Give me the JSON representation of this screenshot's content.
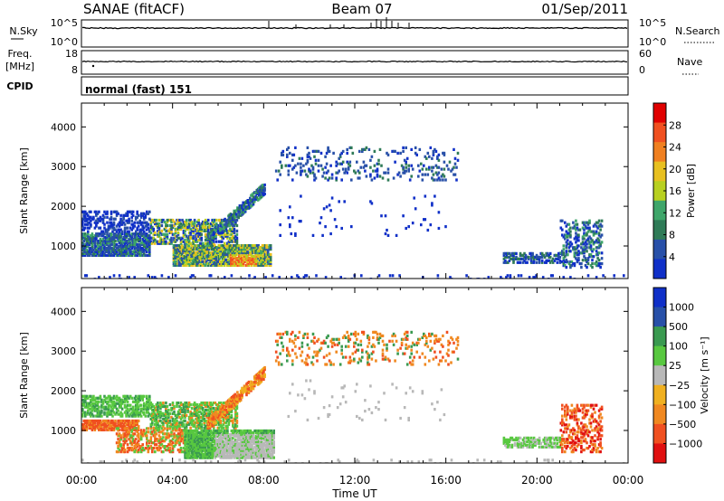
{
  "header": {
    "radar": "SANAE (fitACF)",
    "beam": "Beam 07",
    "date": "01/Sep/2011"
  },
  "nsky": {
    "left_label": "N.Sky",
    "right_label": "N.Search",
    "left_ticks": [
      "10^5",
      "10^0"
    ],
    "right_ticks": [
      "10^5",
      "10^0"
    ]
  },
  "freq": {
    "left_label_line1": "Freq.",
    "left_label_line2": "[MHz]",
    "right_label": "Nave",
    "left_ticks": [
      "18",
      "8"
    ],
    "right_ticks": [
      "60",
      "0"
    ]
  },
  "cpid": {
    "label": "CPID",
    "value": "normal (fast) 151"
  },
  "colors": {
    "power": [
      "#1030c8",
      "#2850a8",
      "#2f7b57",
      "#3fa66a",
      "#b8d020",
      "#e8c020",
      "#f08020",
      "#f05020",
      "#e00000"
    ],
    "velocity": [
      "#e01010",
      "#f05020",
      "#f08820",
      "#f0b020",
      "#b8b8b8",
      "#58c840",
      "#3a9a50",
      "#2850a8",
      "#1030c8"
    ]
  },
  "chart_data": [
    {
      "type": "heatmap",
      "title": "Power",
      "ylabel": "Slant Range [km]",
      "xlabel": "",
      "x_ticks": [
        "00:00",
        "04:00",
        "08:00",
        "12:00",
        "16:00",
        "20:00",
        "00:00"
      ],
      "xlim_hours": [
        0,
        24
      ],
      "ylim_km": [
        180,
        4600
      ],
      "y_ticks": [
        1000,
        2000,
        3000,
        4000
      ],
      "colorbar": {
        "label": "Power [dB]",
        "ticks": [
          "4",
          "8",
          "12",
          "16",
          "20",
          "24",
          "28"
        ],
        "range": [
          0,
          30
        ]
      },
      "regions": [
        {
          "t": [
            0.0,
            8.5
          ],
          "r": [
            250,
            1300
          ],
          "level": "mixed_high"
        },
        {
          "t": [
            0.0,
            3.0
          ],
          "r": [
            1300,
            1900
          ],
          "level": "low"
        },
        {
          "t": [
            3.0,
            6.5
          ],
          "r": [
            1300,
            2200
          ],
          "level": "mixed"
        },
        {
          "t": [
            6.5,
            8.0
          ],
          "r": [
            1800,
            2600
          ],
          "level": "low_mid"
        },
        {
          "t": [
            8.5,
            16.5
          ],
          "r": [
            2700,
            3600
          ],
          "level": "low_mid"
        },
        {
          "t": [
            18.5,
            21.0
          ],
          "r": [
            600,
            900
          ],
          "level": "low_mid"
        },
        {
          "t": [
            21.0,
            22.8
          ],
          "r": [
            500,
            1700
          ],
          "level": "low_mid"
        }
      ]
    },
    {
      "type": "heatmap",
      "title": "Velocity",
      "ylabel": "Slant Range [km]",
      "xlabel": "Time UT",
      "x_ticks": [
        "00:00",
        "04:00",
        "08:00",
        "12:00",
        "16:00",
        "20:00",
        "00:00"
      ],
      "xlim_hours": [
        0,
        24
      ],
      "ylim_km": [
        180,
        4600
      ],
      "y_ticks": [
        1000,
        2000,
        3000,
        4000
      ],
      "colorbar": {
        "label": "Velocity [m s⁻¹]",
        "ticks": [
          "1000",
          "500",
          "100",
          "25",
          "−25",
          "−100",
          "−500",
          "−1000"
        ]
      },
      "regions": [
        {
          "t": [
            0.0,
            2.5
          ],
          "r": [
            1000,
            1300
          ],
          "level": "negative"
        },
        {
          "t": [
            0.0,
            8.5
          ],
          "r": [
            250,
            1900
          ],
          "level": "small_positive"
        },
        {
          "t": [
            4.5,
            8.5
          ],
          "r": [
            300,
            1100
          ],
          "level": "ground_scatter"
        },
        {
          "t": [
            6.5,
            8.0
          ],
          "r": [
            1800,
            2600
          ],
          "level": "negative"
        },
        {
          "t": [
            8.5,
            16.5
          ],
          "r": [
            2700,
            3600
          ],
          "level": "negative"
        },
        {
          "t": [
            18.5,
            21.0
          ],
          "r": [
            600,
            900
          ],
          "level": "small_positive"
        },
        {
          "t": [
            21.0,
            22.8
          ],
          "r": [
            500,
            1700
          ],
          "level": "negative"
        }
      ]
    }
  ]
}
